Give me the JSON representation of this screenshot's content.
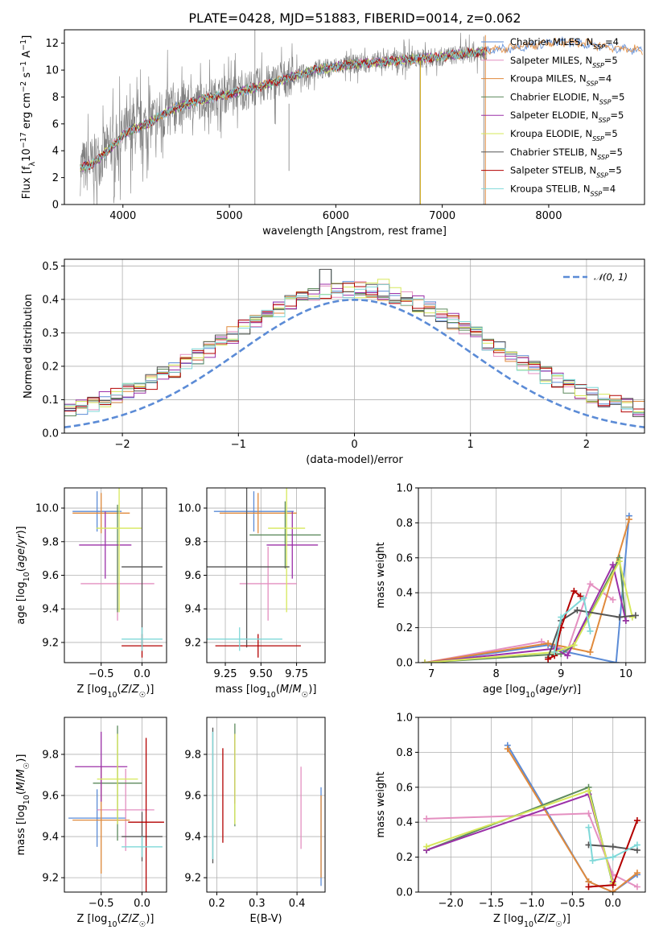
{
  "figure": {
    "title": "PLATE=0428, MJD=51883, FIBERID=0014, z=0.062"
  },
  "colors": {
    "chabrier_miles": "#5b8bd6",
    "salpeter_miles": "#e48fc0",
    "kroupa_miles": "#e08a3c",
    "chabrier_elodie": "#5d8a5d",
    "salpeter_elodie": "#9b30a8",
    "kroupa_elodie": "#d6e85a",
    "chabrier_stelib": "#555555",
    "salpeter_stelib": "#b30000",
    "kroupa_stelib": "#7fd8d8",
    "data": "#808080",
    "normal": "#5b8bd6",
    "grid": "#b0b0b0"
  },
  "legend_spectrum": [
    {
      "label": "Chabrier MILES, N",
      "sub": "SSP",
      "tail": "=4",
      "color": "#5b8bd6"
    },
    {
      "label": "Salpeter MILES, N",
      "sub": "SSP",
      "tail": "=5",
      "color": "#e48fc0"
    },
    {
      "label": "Kroupa MILES, N",
      "sub": "SSP",
      "tail": "=4",
      "color": "#e08a3c"
    },
    {
      "label": "Chabrier ELODIE, N",
      "sub": "SSP",
      "tail": "=5",
      "color": "#5d8a5d"
    },
    {
      "label": "Salpeter ELODIE, N",
      "sub": "SSP",
      "tail": "=5",
      "color": "#9b30a8"
    },
    {
      "label": "Kroupa ELODIE, N",
      "sub": "SSP",
      "tail": "=5",
      "color": "#d6e85a"
    },
    {
      "label": "Chabrier STELIB, N",
      "sub": "SSP",
      "tail": "=5",
      "color": "#555555"
    },
    {
      "label": "Salpeter STELIB, N",
      "sub": "SSP",
      "tail": "=5",
      "color": "#b30000"
    },
    {
      "label": "Kroupa STELIB, N",
      "sub": "SSP",
      "tail": "=4",
      "color": "#7fd8d8"
    }
  ],
  "legend_hist": {
    "label": "𝒩(0, 1)"
  },
  "chart_data": [
    {
      "id": "spectrum",
      "type": "line",
      "xlabel": "wavelength [Angstrom, rest frame]",
      "ylabel": "Flux [fλ10⁻¹⁷ erg cm⁻² s⁻¹ A⁻¹]",
      "xlim": [
        3450,
        8900
      ],
      "ylim": [
        0,
        13
      ],
      "xticks": [
        4000,
        5000,
        6000,
        7000,
        8000
      ],
      "yticks": [
        0,
        2,
        4,
        6,
        8,
        10,
        12
      ],
      "continuum": {
        "x": [
          3600,
          3700,
          3800,
          3900,
          4000,
          4100,
          4200,
          4300,
          4400,
          4500,
          4700,
          4900,
          5100,
          5300,
          5500,
          5800,
          6100,
          6400,
          6700,
          7000,
          7200,
          7400,
          7600,
          7800,
          8000,
          8200,
          8400,
          8600,
          8800
        ],
        "y": [
          2.7,
          3.0,
          3.6,
          4.3,
          5.2,
          5.6,
          5.9,
          6.3,
          6.8,
          7.2,
          7.7,
          8.1,
          8.4,
          8.8,
          9.3,
          10.0,
          10.4,
          10.6,
          10.8,
          11.0,
          11.2,
          11.4,
          11.6,
          11.8,
          12.0,
          12.1,
          11.9,
          11.7,
          11.5
        ]
      },
      "data_range": [
        3600,
        7420
      ]
    },
    {
      "id": "residual-histogram",
      "type": "histogram",
      "xlabel": "(data-model)/error",
      "ylabel": "Normed distribution",
      "xlim": [
        -2.5,
        2.5
      ],
      "ylim": [
        0,
        0.52
      ],
      "xticks": [
        -2,
        -1,
        0,
        1,
        2
      ],
      "yticks": [
        0.0,
        0.1,
        0.2,
        0.3,
        0.4,
        0.5
      ],
      "normal": {
        "mu": 0,
        "sigma": 1
      }
    },
    {
      "id": "age-vs-Z",
      "type": "errorbar",
      "xlabel": "Z [log10(Z/Z☉)]",
      "ylabel": "age [log10(age/yr)]",
      "xlim": [
        -0.95,
        0.3
      ],
      "ylim": [
        9.08,
        10.12
      ],
      "xticks": [
        -0.5,
        0.0
      ],
      "yticks": [
        9.2,
        9.4,
        9.6,
        9.8,
        10.0
      ],
      "points": [
        {
          "x": -0.55,
          "xerr": 0.3,
          "y": 9.98,
          "yerr": 0.12,
          "color": "#5b8bd6"
        },
        {
          "x": -0.3,
          "xerr": 0.45,
          "y": 9.55,
          "yerr": 0.22,
          "color": "#e48fc0"
        },
        {
          "x": -0.5,
          "xerr": 0.35,
          "y": 9.97,
          "yerr": 0.12,
          "color": "#e08a3c"
        },
        {
          "x": -0.3,
          "xerr": 0.0,
          "y": 9.7,
          "yerr": 0.32,
          "color": "#5d8a5d"
        },
        {
          "x": -0.45,
          "xerr": 0.32,
          "y": 9.78,
          "yerr": 0.2,
          "color": "#9b30a8"
        },
        {
          "x": -0.28,
          "xerr": 0.28,
          "y": 9.88,
          "yerr": 0.5,
          "color": "#d6e85a"
        },
        {
          "x": 0.0,
          "xerr": 0.25,
          "y": 9.65,
          "yerr": 0.48,
          "color": "#555555"
        },
        {
          "x": 0.0,
          "xerr": 0.25,
          "y": 9.18,
          "yerr": 0.07,
          "color": "#b30000"
        },
        {
          "x": 0.0,
          "xerr": 0.25,
          "y": 9.22,
          "yerr": 0.07,
          "color": "#7fd8d8"
        }
      ]
    },
    {
      "id": "age-vs-mass",
      "type": "errorbar",
      "xlabel": "mass [log10(M/M☉)]",
      "ylabel": "",
      "xlim": [
        9.12,
        9.95
      ],
      "ylim": [
        9.08,
        10.12
      ],
      "xticks": [
        9.25,
        9.5,
        9.75
      ],
      "yticks": [
        9.2,
        9.4,
        9.6,
        9.8,
        10.0
      ],
      "points": [
        {
          "x": 9.45,
          "xerr": 0.28,
          "y": 9.98,
          "yerr": 0.12,
          "color": "#5b8bd6"
        },
        {
          "x": 9.55,
          "xerr": 0.2,
          "y": 9.55,
          "yerr": 0.22,
          "color": "#e48fc0"
        },
        {
          "x": 9.48,
          "xerr": 0.27,
          "y": 9.97,
          "yerr": 0.12,
          "color": "#e08a3c"
        },
        {
          "x": 9.67,
          "xerr": 0.25,
          "y": 9.84,
          "yerr": 0.2,
          "color": "#5d8a5d"
        },
        {
          "x": 9.72,
          "xerr": 0.18,
          "y": 9.78,
          "yerr": 0.2,
          "color": "#9b30a8"
        },
        {
          "x": 9.68,
          "xerr": 0.13,
          "y": 9.88,
          "yerr": 0.5,
          "color": "#d6e85a"
        },
        {
          "x": 9.4,
          "xerr": 0.3,
          "y": 9.65,
          "yerr": 0.48,
          "color": "#555555"
        },
        {
          "x": 9.48,
          "xerr": 0.3,
          "y": 9.18,
          "yerr": 0.07,
          "color": "#b30000"
        },
        {
          "x": 9.35,
          "xerr": 0.3,
          "y": 9.22,
          "yerr": 0.07,
          "color": "#7fd8d8"
        }
      ]
    },
    {
      "id": "mass-weight-vs-age",
      "type": "line",
      "xlabel": "age [log10(age/yr)]",
      "ylabel": "mass weight",
      "xlim": [
        6.8,
        10.3
      ],
      "ylim": [
        0,
        1
      ],
      "xticks": [
        7,
        8,
        9,
        10
      ],
      "yticks": [
        0.0,
        0.2,
        0.4,
        0.6,
        0.8,
        1.0
      ],
      "series": [
        {
          "color": "#5b8bd6",
          "x": [
            6.9,
            8.8,
            9.1,
            9.85,
            10.05
          ],
          "y": [
            0.0,
            0.1,
            0.06,
            0.0,
            0.84
          ]
        },
        {
          "color": "#e48fc0",
          "x": [
            6.9,
            8.7,
            9.1,
            9.45,
            9.8
          ],
          "y": [
            0.0,
            0.12,
            0.07,
            0.45,
            0.36
          ]
        },
        {
          "color": "#e08a3c",
          "x": [
            6.9,
            8.8,
            9.45,
            10.05
          ],
          "y": [
            0.0,
            0.11,
            0.06,
            0.82
          ]
        },
        {
          "color": "#5d8a5d",
          "x": [
            6.9,
            9.0,
            9.2,
            9.9,
            10.0
          ],
          "y": [
            0.0,
            0.05,
            0.1,
            0.6,
            0.24
          ]
        },
        {
          "color": "#9b30a8",
          "x": [
            6.9,
            8.9,
            9.1,
            9.8,
            10.0
          ],
          "y": [
            0.0,
            0.08,
            0.04,
            0.56,
            0.24
          ]
        },
        {
          "color": "#d6e85a",
          "x": [
            6.9,
            8.9,
            9.2,
            9.9,
            10.1
          ],
          "y": [
            0.0,
            0.06,
            0.1,
            0.58,
            0.26
          ]
        },
        {
          "color": "#555555",
          "x": [
            8.8,
            9.0,
            9.25,
            9.9,
            10.15
          ],
          "y": [
            0.03,
            0.24,
            0.3,
            0.26,
            0.27
          ]
        },
        {
          "color": "#b30000",
          "x": [
            8.8,
            8.9,
            9.0,
            9.2,
            9.3
          ],
          "y": [
            0.02,
            0.04,
            0.2,
            0.41,
            0.38
          ]
        },
        {
          "color": "#7fd8d8",
          "x": [
            8.9,
            9.0,
            9.35,
            9.45
          ],
          "y": [
            0.06,
            0.26,
            0.37,
            0.18
          ]
        }
      ]
    },
    {
      "id": "mass-vs-Z",
      "type": "errorbar",
      "xlabel": "Z [log10(Z/Z☉)]",
      "ylabel": "mass [log10(M/M☉)]",
      "xlim": [
        -0.95,
        0.3
      ],
      "ylim": [
        9.13,
        9.98
      ],
      "xticks": [
        -0.5,
        0.0
      ],
      "yticks": [
        9.2,
        9.4,
        9.6,
        9.8
      ],
      "points": [
        {
          "x": -0.55,
          "xerr": 0.35,
          "y": 9.49,
          "yerr": 0.14,
          "color": "#5b8bd6"
        },
        {
          "x": -0.2,
          "xerr": 0.35,
          "y": 9.53,
          "yerr": 0.2,
          "color": "#e48fc0"
        },
        {
          "x": -0.5,
          "xerr": 0.35,
          "y": 9.48,
          "yerr": 0.26,
          "color": "#e08a3c"
        },
        {
          "x": -0.3,
          "xerr": 0.3,
          "y": 9.66,
          "yerr": 0.28,
          "color": "#5d8a5d"
        },
        {
          "x": -0.5,
          "xerr": 0.32,
          "y": 9.74,
          "yerr": 0.17,
          "color": "#9b30a8"
        },
        {
          "x": -0.3,
          "xerr": 0.25,
          "y": 9.68,
          "yerr": 0.22,
          "color": "#d6e85a"
        },
        {
          "x": 0.0,
          "xerr": 0.25,
          "y": 9.4,
          "yerr": 0.12,
          "color": "#555555"
        },
        {
          "x": 0.05,
          "xerr": 0.22,
          "y": 9.47,
          "yerr": 0.41,
          "color": "#b30000"
        },
        {
          "x": 0.0,
          "xerr": 0.25,
          "y": 9.35,
          "yerr": 0.05,
          "color": "#7fd8d8"
        }
      ]
    },
    {
      "id": "mass-vs-EBV",
      "type": "errorbar",
      "xlabel": "E(B-V)",
      "ylabel": "",
      "xlim": [
        0.175,
        0.47
      ],
      "ylim": [
        9.13,
        9.98
      ],
      "xticks": [
        0.2,
        0.3,
        0.4
      ],
      "yticks": [
        9.2,
        9.4,
        9.6,
        9.8
      ],
      "points": [
        {
          "x": 0.46,
          "xerr": 0,
          "y": 9.4,
          "yerr": 0.24,
          "color": "#5b8bd6"
        },
        {
          "x": 0.41,
          "xerr": 0,
          "y": 9.54,
          "yerr": 0.2,
          "color": "#e48fc0"
        },
        {
          "x": 0.46,
          "xerr": 0,
          "y": 9.4,
          "yerr": 0.2,
          "color": "#e08a3c"
        },
        {
          "x": 0.245,
          "xerr": 0,
          "y": 9.7,
          "yerr": 0.25,
          "color": "#5d8a5d"
        },
        {
          "x": 0.245,
          "xerr": 0,
          "y": 9.73,
          "yerr": 0.17,
          "color": "#9b30a8"
        },
        {
          "x": 0.245,
          "xerr": 0,
          "y": 9.68,
          "yerr": 0.22,
          "color": "#d6e85a"
        },
        {
          "x": 0.19,
          "xerr": 0,
          "y": 9.6,
          "yerr": 0.33,
          "color": "#555555"
        },
        {
          "x": 0.215,
          "xerr": 0,
          "y": 9.6,
          "yerr": 0.23,
          "color": "#b30000"
        },
        {
          "x": 0.19,
          "xerr": 0,
          "y": 9.6,
          "yerr": 0.31,
          "color": "#7fd8d8"
        }
      ]
    },
    {
      "id": "mass-weight-vs-Z",
      "type": "line",
      "xlabel": "Z [log10(Z/Z☉)]",
      "ylabel": "mass weight",
      "xlim": [
        -2.4,
        0.4
      ],
      "ylim": [
        0,
        1
      ],
      "xticks": [
        -2.0,
        -1.5,
        -1.0,
        -0.5,
        0.0
      ],
      "yticks": [
        0.0,
        0.2,
        0.4,
        0.6,
        0.8,
        1.0
      ],
      "series": [
        {
          "color": "#5b8bd6",
          "x": [
            -1.3,
            -0.3,
            0.0,
            0.3
          ],
          "y": [
            0.84,
            0.06,
            0.0,
            0.1
          ]
        },
        {
          "color": "#e48fc0",
          "x": [
            -2.3,
            -0.3,
            0.0,
            0.3
          ],
          "y": [
            0.42,
            0.45,
            0.1,
            0.03
          ]
        },
        {
          "color": "#e08a3c",
          "x": [
            -1.3,
            -0.3,
            0.0,
            0.3
          ],
          "y": [
            0.82,
            0.06,
            0.0,
            0.11
          ]
        },
        {
          "color": "#5d8a5d",
          "x": [
            -2.3,
            -0.3,
            0.0
          ],
          "y": [
            0.24,
            0.6,
            0.04
          ]
        },
        {
          "color": "#9b30a8",
          "x": [
            -2.3,
            -0.3,
            0.0
          ],
          "y": [
            0.24,
            0.56,
            0.06
          ]
        },
        {
          "color": "#d6e85a",
          "x": [
            -2.3,
            -0.3,
            0.0
          ],
          "y": [
            0.26,
            0.58,
            0.05
          ]
        },
        {
          "color": "#555555",
          "x": [
            -0.3,
            0.0,
            0.3
          ],
          "y": [
            0.27,
            0.26,
            0.24
          ]
        },
        {
          "color": "#b30000",
          "x": [
            -0.3,
            0.0,
            0.3
          ],
          "y": [
            0.03,
            0.04,
            0.41
          ]
        },
        {
          "color": "#7fd8d8",
          "x": [
            -0.3,
            -0.25,
            0.0,
            0.3
          ],
          "y": [
            0.37,
            0.18,
            0.2,
            0.27
          ]
        }
      ]
    }
  ]
}
